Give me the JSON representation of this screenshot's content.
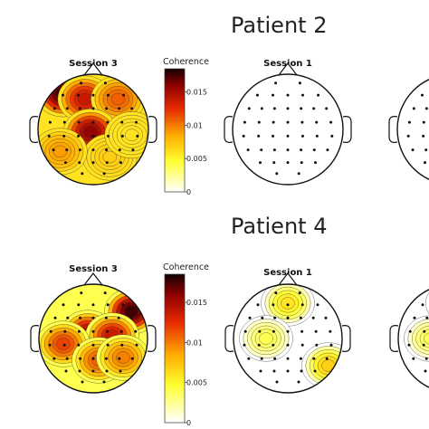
{
  "chart_data": {
    "type": "heatmap",
    "colorbar": {
      "label": "Coherence",
      "ticks": [
        "0",
        "0.005",
        "0.01",
        "0.015"
      ],
      "tick_values": [
        0,
        0.005,
        0.01,
        0.015
      ],
      "range": [
        0,
        0.0185
      ],
      "colors": [
        "#ffffff",
        "#ffff33",
        "#ffb000",
        "#e62800",
        "#8a0000",
        "#120000"
      ]
    },
    "panels": [
      {
        "patient": "Patient 2",
        "sessions": [
          {
            "label": "Session 3",
            "map": "patient2-session3",
            "electrodes_shown": true,
            "hotspots": [
              {
                "x": -0.55,
                "y": -0.65,
                "value": 0.018
              },
              {
                "x": -0.15,
                "y": -0.55,
                "value": 0.014
              },
              {
                "x": 0.45,
                "y": -0.55,
                "value": 0.011
              },
              {
                "x": -0.05,
                "y": 0.05,
                "value": 0.016
              },
              {
                "x": 0.3,
                "y": 0.5,
                "value": 0.007
              },
              {
                "x": -0.6,
                "y": 0.4,
                "value": 0.009
              },
              {
                "x": 0.7,
                "y": 0.1,
                "value": 0.006
              }
            ],
            "baseline": 0.006
          },
          {
            "label": "Session 1",
            "map": "patient2-session1",
            "electrodes_shown": true,
            "hotspots": [],
            "baseline": 0
          }
        ]
      },
      {
        "patient": "Patient 4",
        "sessions": [
          {
            "label": "Session 3",
            "map": "patient4-session3",
            "electrodes_shown": true,
            "hotspots": [
              {
                "x": 0.7,
                "y": -0.5,
                "value": 0.018
              },
              {
                "x": -0.1,
                "y": -0.1,
                "value": 0.015
              },
              {
                "x": 0.35,
                "y": -0.05,
                "value": 0.014
              },
              {
                "x": -0.55,
                "y": 0.1,
                "value": 0.012
              },
              {
                "x": 0.1,
                "y": 0.4,
                "value": 0.011
              },
              {
                "x": 0.55,
                "y": 0.35,
                "value": 0.01
              }
            ],
            "baseline": 0.004
          },
          {
            "label": "Session 1",
            "map": "patient4-session1",
            "electrodes_shown": true,
            "hotspots": [
              {
                "x": 0.0,
                "y": -0.65,
                "value": 0.006
              },
              {
                "x": 0.75,
                "y": 0.5,
                "value": 0.007
              },
              {
                "x": -0.4,
                "y": 0.0,
                "value": 0.004
              }
            ],
            "baseline": 0
          }
        ]
      }
    ]
  }
}
